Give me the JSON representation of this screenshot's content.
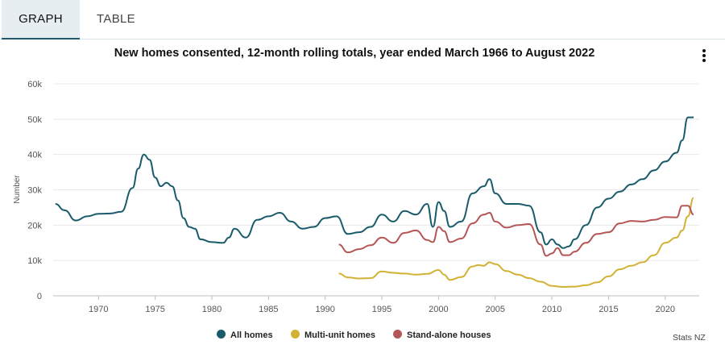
{
  "tabs": {
    "graph": "GRAPH",
    "table": "TABLE"
  },
  "source": "Stats NZ",
  "colors": {
    "all": "#1a5b6b",
    "multi": "#d1b234",
    "stand": "#b55656",
    "grid": "#e8e8e8"
  },
  "chart_data": {
    "type": "line",
    "title": "New homes consented, 12-month rolling totals, year ended March 1966 to August 2022",
    "xlabel": "",
    "ylabel": "Number",
    "xlim": [
      1966,
      2023
    ],
    "ylim": [
      0,
      60000
    ],
    "y_ticks": [
      0,
      10000,
      20000,
      30000,
      40000,
      50000,
      60000
    ],
    "y_tick_labels": [
      "0",
      "10k",
      "20k",
      "30k",
      "40k",
      "50k",
      "60k"
    ],
    "x_ticks": [
      1970,
      1975,
      1980,
      1985,
      1990,
      1995,
      2000,
      2005,
      2010,
      2015,
      2020
    ],
    "x_tick_labels": [
      "1970",
      "1975",
      "1980",
      "1985",
      "1990",
      "1995",
      "2000",
      "2005",
      "2010",
      "2015",
      "2020"
    ],
    "grid": true,
    "legend_position": "bottom",
    "series": [
      {
        "name": "All homes",
        "x": [
          1966.2,
          1967,
          1968,
          1969,
          1970,
          1971,
          1972,
          1973,
          1973.5,
          1974,
          1974.5,
          1975,
          1975.5,
          1976,
          1976.5,
          1977,
          1977.5,
          1978,
          1978.5,
          1979,
          1980,
          1981,
          1981.5,
          1982,
          1983,
          1984,
          1985,
          1986,
          1987,
          1988,
          1989,
          1990,
          1991,
          1992,
          1993,
          1994,
          1995,
          1996,
          1997,
          1998,
          1999,
          1999.5,
          2000,
          2000.5,
          2001,
          2002,
          2003,
          2004,
          2004.5,
          2005,
          2006,
          2007,
          2008,
          2009,
          2009.5,
          2010,
          2010.5,
          2011,
          2011.5,
          2012,
          2013,
          2014,
          2015,
          2016,
          2017,
          2018,
          2019,
          2020,
          2021,
          2021.5,
          2022,
          2022.5
        ],
        "values": [
          26000,
          24200,
          21300,
          22500,
          23200,
          23300,
          23800,
          30500,
          36000,
          40000,
          38500,
          33500,
          31000,
          32000,
          31000,
          27000,
          22000,
          19500,
          19000,
          16000,
          15200,
          15000,
          16500,
          19000,
          16500,
          21500,
          22500,
          23500,
          21000,
          19000,
          19500,
          22000,
          22500,
          17500,
          18000,
          19500,
          23000,
          21000,
          24000,
          23000,
          26000,
          19500,
          26500,
          24000,
          19500,
          21000,
          29000,
          31000,
          33000,
          29000,
          26000,
          26000,
          25500,
          18000,
          14500,
          16000,
          14500,
          13500,
          14000,
          16000,
          20000,
          25000,
          27500,
          29500,
          31500,
          33000,
          35500,
          38000,
          40500,
          44000,
          50500,
          50500
        ]
      },
      {
        "name": "Multi-unit homes",
        "x": [
          1991.2,
          1992,
          1993,
          1994,
          1995,
          1996,
          1997,
          1998,
          1999,
          2000,
          2000.5,
          2001,
          2002,
          2003,
          2003.5,
          2004,
          2004.5,
          2005,
          2006,
          2007,
          2008,
          2009,
          2010,
          2011,
          2012,
          2013,
          2014,
          2015,
          2016,
          2017,
          2018,
          2019,
          2020,
          2021,
          2021.5,
          2022,
          2022.5
        ],
        "values": [
          6300,
          5200,
          4900,
          5000,
          6900,
          6500,
          6300,
          6000,
          6200,
          7300,
          6000,
          4500,
          5300,
          8300,
          8700,
          8500,
          9500,
          9000,
          7000,
          6000,
          5000,
          4000,
          2800,
          2500,
          2600,
          3000,
          3800,
          5500,
          7500,
          8500,
          9500,
          11500,
          15000,
          16500,
          18500,
          22500,
          27700
        ]
      },
      {
        "name": "Stand-alone houses",
        "x": [
          1991.2,
          1992,
          1993,
          1994,
          1995,
          1996,
          1997,
          1998,
          1999,
          1999.5,
          2000,
          2000.5,
          2001,
          2002,
          2003,
          2004,
          2004.5,
          2005,
          2006,
          2007,
          2008,
          2009,
          2009.5,
          2010,
          2010.5,
          2011,
          2011.5,
          2012,
          2013,
          2014,
          2015,
          2016,
          2017,
          2018,
          2019,
          2020,
          2021,
          2021.5,
          2022,
          2022.5
        ],
        "values": [
          14500,
          12300,
          13200,
          14300,
          16500,
          15000,
          17800,
          18500,
          15800,
          15200,
          19500,
          18300,
          15200,
          16200,
          20500,
          23000,
          23500,
          21000,
          19300,
          20000,
          20300,
          14500,
          11300,
          12000,
          13500,
          11500,
          11500,
          12500,
          15000,
          17500,
          18000,
          20500,
          21200,
          21000,
          21500,
          22300,
          22200,
          25500,
          25500,
          23000
        ]
      }
    ]
  }
}
